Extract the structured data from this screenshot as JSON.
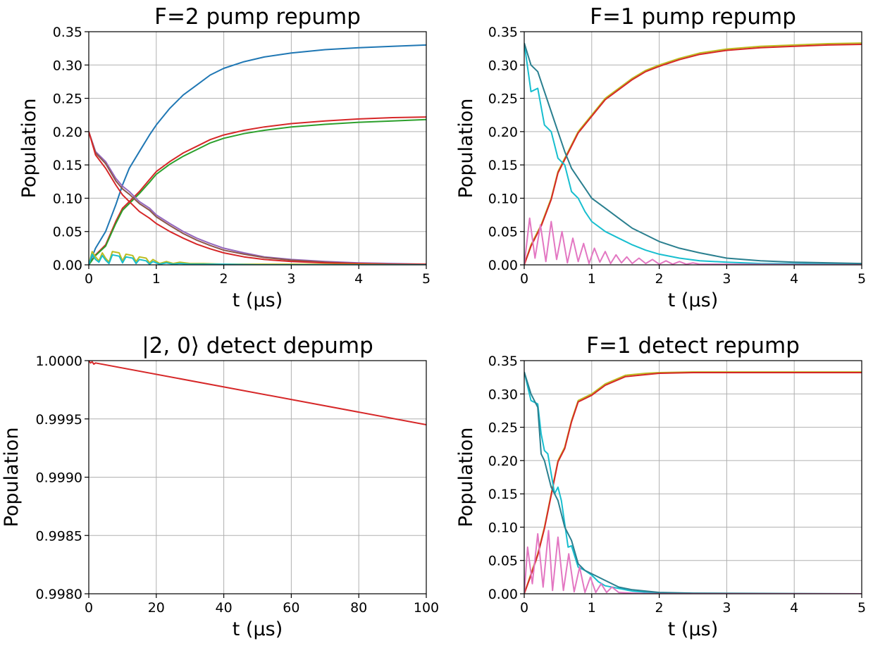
{
  "figure": {
    "panels": [
      {
        "title": "F=2 pump repump",
        "xlabel": "t (μs)",
        "ylabel": "Population"
      },
      {
        "title": "F=1 pump repump",
        "xlabel": "t (μs)",
        "ylabel": "Population"
      },
      {
        "title": "|2, 0⟩ detect depump",
        "xlabel": "t (μs)",
        "ylabel": "Population"
      },
      {
        "title": "F=1 detect repump",
        "xlabel": "t (μs)",
        "ylabel": "Population"
      }
    ]
  },
  "chart_data": [
    {
      "type": "line",
      "title": "F=2 pump repump",
      "xlabel": "t (μs)",
      "ylabel": "Population",
      "xlim": [
        0,
        5
      ],
      "ylim": [
        0,
        0.35
      ],
      "xticks": [
        "0",
        "1",
        "2",
        "3",
        "4",
        "5"
      ],
      "yticks": [
        "0.00",
        "0.05",
        "0.10",
        "0.15",
        "0.20",
        "0.25",
        "0.30",
        "0.35"
      ],
      "grid": true,
      "series": [
        {
          "color": "#1f77b4",
          "x": [
            0,
            0.1,
            0.25,
            0.4,
            0.5,
            0.6,
            0.75,
            0.9,
            1.0,
            1.2,
            1.4,
            1.6,
            1.8,
            2.0,
            2.3,
            2.6,
            3.0,
            3.5,
            4.0,
            4.5,
            5.0
          ],
          "y": [
            0,
            0.025,
            0.05,
            0.09,
            0.12,
            0.145,
            0.17,
            0.195,
            0.21,
            0.235,
            0.255,
            0.27,
            0.285,
            0.295,
            0.305,
            0.312,
            0.318,
            0.323,
            0.326,
            0.328,
            0.33
          ]
        },
        {
          "color": "#d62728",
          "x": [
            0,
            0.1,
            0.25,
            0.4,
            0.5,
            0.6,
            0.75,
            0.9,
            1.0,
            1.2,
            1.4,
            1.6,
            1.8,
            2.0,
            2.3,
            2.6,
            3.0,
            3.5,
            4.0,
            4.5,
            5.0
          ],
          "y": [
            0,
            0.015,
            0.03,
            0.065,
            0.085,
            0.095,
            0.11,
            0.128,
            0.14,
            0.155,
            0.168,
            0.178,
            0.188,
            0.195,
            0.202,
            0.207,
            0.212,
            0.216,
            0.219,
            0.221,
            0.222
          ]
        },
        {
          "color": "#2ca02c",
          "x": [
            0,
            0.1,
            0.25,
            0.4,
            0.5,
            0.6,
            0.75,
            0.9,
            1.0,
            1.2,
            1.4,
            1.6,
            1.8,
            2.0,
            2.3,
            2.6,
            3.0,
            3.5,
            4.0,
            4.5,
            5.0
          ],
          "y": [
            0,
            0.014,
            0.028,
            0.062,
            0.082,
            0.092,
            0.107,
            0.124,
            0.136,
            0.151,
            0.163,
            0.173,
            0.183,
            0.19,
            0.197,
            0.202,
            0.207,
            0.211,
            0.214,
            0.216,
            0.218
          ]
        },
        {
          "color": "#9467bd",
          "x": [
            0,
            0.1,
            0.25,
            0.4,
            0.5,
            0.6,
            0.75,
            0.9,
            1.0,
            1.2,
            1.4,
            1.6,
            1.8,
            2.0,
            2.3,
            2.6,
            3.0,
            3.5,
            4.0,
            4.5,
            5.0
          ],
          "y": [
            0.2,
            0.17,
            0.155,
            0.13,
            0.118,
            0.11,
            0.095,
            0.085,
            0.075,
            0.062,
            0.05,
            0.04,
            0.032,
            0.025,
            0.018,
            0.012,
            0.008,
            0.005,
            0.003,
            0.002,
            0.001
          ]
        },
        {
          "color": "#8c564b",
          "x": [
            0,
            0.1,
            0.25,
            0.4,
            0.5,
            0.6,
            0.75,
            0.9,
            1.0,
            1.2,
            1.4,
            1.6,
            1.8,
            2.0,
            2.3,
            2.6,
            3.0,
            3.5,
            4.0,
            4.5,
            5.0
          ],
          "y": [
            0.2,
            0.168,
            0.152,
            0.126,
            0.114,
            0.106,
            0.092,
            0.082,
            0.072,
            0.059,
            0.047,
            0.037,
            0.029,
            0.022,
            0.016,
            0.011,
            0.007,
            0.004,
            0.002,
            0.001,
            0.001
          ]
        },
        {
          "color": "#d62728",
          "x": [
            0,
            0.1,
            0.25,
            0.4,
            0.5,
            0.6,
            0.75,
            0.9,
            1.0,
            1.2,
            1.4,
            1.6,
            1.8,
            2.0,
            2.3,
            2.6,
            3.0,
            3.5,
            4.0,
            4.5,
            5.0
          ],
          "y": [
            0.2,
            0.165,
            0.145,
            0.12,
            0.105,
            0.095,
            0.08,
            0.07,
            0.062,
            0.05,
            0.04,
            0.031,
            0.024,
            0.018,
            0.012,
            0.008,
            0.005,
            0.003,
            0.002,
            0.001,
            0.001
          ]
        },
        {
          "color": "#bcbd22",
          "x": [
            0,
            0.05,
            0.1,
            0.15,
            0.2,
            0.25,
            0.3,
            0.35,
            0.45,
            0.5,
            0.55,
            0.65,
            0.7,
            0.75,
            0.85,
            0.9,
            0.95,
            1.05,
            1.15,
            1.25,
            1.35,
            1.5,
            1.7,
            2.0,
            2.5,
            3.0,
            5.0
          ],
          "y": [
            0.0,
            0.02,
            0.012,
            0.006,
            0.018,
            0.01,
            0.004,
            0.02,
            0.018,
            0.006,
            0.016,
            0.014,
            0.005,
            0.012,
            0.01,
            0.003,
            0.008,
            0.002,
            0.005,
            0.002,
            0.004,
            0.002,
            0.002,
            0.001,
            0.001,
            0.001,
            0.0
          ]
        },
        {
          "color": "#17becf",
          "x": [
            0,
            0.05,
            0.1,
            0.15,
            0.2,
            0.25,
            0.3,
            0.35,
            0.45,
            0.5,
            0.55,
            0.65,
            0.7,
            0.75,
            0.85,
            0.9,
            0.95,
            1.05,
            1.15,
            1.25,
            1.35,
            1.5,
            1.7,
            2.0,
            2.5,
            3.0,
            5.0
          ],
          "y": [
            0.0,
            0.016,
            0.008,
            0.004,
            0.014,
            0.007,
            0.002,
            0.015,
            0.013,
            0.003,
            0.012,
            0.01,
            0.002,
            0.008,
            0.006,
            0.001,
            0.005,
            0.001,
            0.003,
            0.001,
            0.002,
            0.001,
            0.001,
            0.001,
            0.0,
            0.0,
            0.0
          ]
        }
      ]
    },
    {
      "type": "line",
      "title": "F=1 pump repump",
      "xlabel": "t (μs)",
      "ylabel": "Population",
      "xlim": [
        0,
        5
      ],
      "ylim": [
        0,
        0.35
      ],
      "xticks": [
        "0",
        "1",
        "2",
        "3",
        "4",
        "5"
      ],
      "yticks": [
        "0.00",
        "0.05",
        "0.10",
        "0.15",
        "0.20",
        "0.25",
        "0.30",
        "0.35"
      ],
      "grid": true,
      "series": [
        {
          "color": "#bcbd22",
          "x": [
            0,
            0.1,
            0.25,
            0.4,
            0.5,
            0.65,
            0.8,
            1.0,
            1.2,
            1.4,
            1.6,
            1.8,
            2.0,
            2.3,
            2.6,
            3.0,
            3.5,
            4.0,
            4.5,
            5.0
          ],
          "y": [
            0,
            0.03,
            0.06,
            0.1,
            0.14,
            0.17,
            0.2,
            0.225,
            0.25,
            0.265,
            0.28,
            0.292,
            0.3,
            0.31,
            0.318,
            0.324,
            0.328,
            0.33,
            0.332,
            0.333
          ]
        },
        {
          "color": "#d62728",
          "x": [
            0,
            0.1,
            0.25,
            0.4,
            0.5,
            0.65,
            0.8,
            1.0,
            1.2,
            1.4,
            1.6,
            1.8,
            2.0,
            2.3,
            2.6,
            3.0,
            3.5,
            4.0,
            4.5,
            5.0
          ],
          "y": [
            0,
            0.028,
            0.058,
            0.098,
            0.138,
            0.168,
            0.198,
            0.223,
            0.248,
            0.263,
            0.278,
            0.29,
            0.298,
            0.308,
            0.316,
            0.322,
            0.326,
            0.328,
            0.33,
            0.331
          ]
        },
        {
          "color": "#17becf",
          "x": [
            0,
            0.1,
            0.2,
            0.3,
            0.4,
            0.5,
            0.6,
            0.7,
            0.8,
            0.9,
            1.0,
            1.2,
            1.4,
            1.6,
            1.8,
            2.0,
            2.3,
            2.6,
            3.0,
            3.5,
            5.0
          ],
          "y": [
            0.333,
            0.26,
            0.265,
            0.21,
            0.2,
            0.16,
            0.15,
            0.11,
            0.1,
            0.08,
            0.065,
            0.05,
            0.04,
            0.03,
            0.022,
            0.016,
            0.01,
            0.006,
            0.004,
            0.002,
            0.001
          ]
        },
        {
          "color": "#2a7f8f",
          "x": [
            0,
            0.1,
            0.2,
            0.3,
            0.4,
            0.5,
            0.6,
            0.7,
            0.8,
            0.9,
            1.0,
            1.2,
            1.4,
            1.6,
            1.8,
            2.0,
            2.3,
            2.6,
            3.0,
            3.5,
            4.0,
            5.0
          ],
          "y": [
            0.333,
            0.3,
            0.29,
            0.26,
            0.23,
            0.2,
            0.17,
            0.145,
            0.13,
            0.115,
            0.1,
            0.085,
            0.07,
            0.055,
            0.045,
            0.035,
            0.025,
            0.018,
            0.01,
            0.006,
            0.004,
            0.002
          ]
        },
        {
          "color": "#e377c2",
          "x": [
            0,
            0.08,
            0.16,
            0.24,
            0.32,
            0.4,
            0.48,
            0.56,
            0.64,
            0.72,
            0.8,
            0.88,
            0.96,
            1.04,
            1.12,
            1.2,
            1.28,
            1.36,
            1.44,
            1.52,
            1.6,
            1.7,
            1.8,
            1.9,
            2.0,
            2.1,
            2.2,
            2.3,
            2.4,
            2.5,
            2.6,
            3.0,
            5.0
          ],
          "y": [
            0,
            0.07,
            0.01,
            0.06,
            0.005,
            0.065,
            0.008,
            0.05,
            0.003,
            0.04,
            0.005,
            0.032,
            0.002,
            0.025,
            0.004,
            0.02,
            0.002,
            0.015,
            0.003,
            0.012,
            0.002,
            0.01,
            0.002,
            0.008,
            0.001,
            0.006,
            0.001,
            0.005,
            0.001,
            0.003,
            0.001,
            0.001,
            0.0
          ]
        }
      ]
    },
    {
      "type": "line",
      "title": "|2, 0⟩ detect depump",
      "xlabel": "t (μs)",
      "ylabel": "Population",
      "xlim": [
        0,
        100
      ],
      "ylim": [
        0.998,
        1.0
      ],
      "xticks": [
        "0",
        "20",
        "40",
        "60",
        "80",
        "100"
      ],
      "yticks": [
        "0.9980",
        "0.9985",
        "0.9990",
        "0.9995",
        "1.0000"
      ],
      "grid": true,
      "series": [
        {
          "color": "#d62728",
          "x": [
            0,
            0.5,
            1,
            1.5,
            2,
            100
          ],
          "y": [
            1.0,
            0.99998,
            0.99999,
            0.99997,
            0.99998,
            0.99945
          ]
        }
      ]
    },
    {
      "type": "line",
      "title": "F=1 detect repump",
      "xlabel": "t (μs)",
      "ylabel": "Population",
      "xlim": [
        0,
        5
      ],
      "ylim": [
        0,
        0.35
      ],
      "xticks": [
        "0",
        "1",
        "2",
        "3",
        "4",
        "5"
      ],
      "yticks": [
        "0.00",
        "0.05",
        "0.10",
        "0.15",
        "0.20",
        "0.25",
        "0.30",
        "0.35"
      ],
      "grid": true,
      "series": [
        {
          "color": "#bcbd22",
          "x": [
            0,
            0.1,
            0.2,
            0.3,
            0.4,
            0.5,
            0.6,
            0.7,
            0.8,
            1.0,
            1.2,
            1.5,
            1.8,
            2.0,
            2.5,
            3.0,
            4.0,
            5.0
          ],
          "y": [
            0,
            0.03,
            0.06,
            0.1,
            0.15,
            0.2,
            0.22,
            0.26,
            0.29,
            0.3,
            0.315,
            0.328,
            0.331,
            0.332,
            0.333,
            0.333,
            0.333,
            0.333
          ]
        },
        {
          "color": "#d62728",
          "x": [
            0,
            0.1,
            0.2,
            0.3,
            0.4,
            0.5,
            0.6,
            0.7,
            0.8,
            1.0,
            1.2,
            1.5,
            1.8,
            2.0,
            2.5,
            3.0,
            4.0,
            5.0
          ],
          "y": [
            0,
            0.028,
            0.058,
            0.098,
            0.148,
            0.198,
            0.218,
            0.258,
            0.288,
            0.298,
            0.313,
            0.326,
            0.329,
            0.331,
            0.332,
            0.332,
            0.332,
            0.332
          ]
        },
        {
          "color": "#17becf",
          "x": [
            0,
            0.1,
            0.2,
            0.25,
            0.3,
            0.35,
            0.45,
            0.5,
            0.55,
            0.65,
            0.7,
            0.8,
            0.9,
            1.0,
            1.1,
            1.2,
            1.4,
            1.6,
            2.0,
            2.5,
            5.0
          ],
          "y": [
            0.333,
            0.29,
            0.285,
            0.24,
            0.215,
            0.21,
            0.15,
            0.16,
            0.14,
            0.07,
            0.072,
            0.04,
            0.035,
            0.028,
            0.018,
            0.012,
            0.008,
            0.004,
            0.001,
            0.0,
            0.0
          ]
        },
        {
          "color": "#2a7f8f",
          "x": [
            0,
            0.1,
            0.2,
            0.25,
            0.3,
            0.4,
            0.5,
            0.6,
            0.7,
            0.8,
            0.9,
            1.0,
            1.1,
            1.2,
            1.4,
            1.6,
            2.0,
            2.5,
            5.0
          ],
          "y": [
            0.333,
            0.3,
            0.28,
            0.21,
            0.2,
            0.16,
            0.14,
            0.1,
            0.08,
            0.045,
            0.035,
            0.03,
            0.025,
            0.02,
            0.01,
            0.006,
            0.002,
            0.001,
            0.0
          ]
        },
        {
          "color": "#e377c2",
          "x": [
            0,
            0.05,
            0.12,
            0.2,
            0.28,
            0.36,
            0.42,
            0.5,
            0.58,
            0.66,
            0.74,
            0.82,
            0.9,
            0.98,
            1.06,
            1.14,
            1.22,
            1.3,
            1.4,
            1.6,
            2.0,
            5.0
          ],
          "y": [
            0.0,
            0.07,
            0.015,
            0.09,
            0.01,
            0.095,
            0.005,
            0.085,
            0.005,
            0.06,
            0.003,
            0.04,
            0.002,
            0.025,
            0.002,
            0.015,
            0.002,
            0.01,
            0.002,
            0.001,
            0.0,
            0.0
          ]
        }
      ]
    }
  ]
}
